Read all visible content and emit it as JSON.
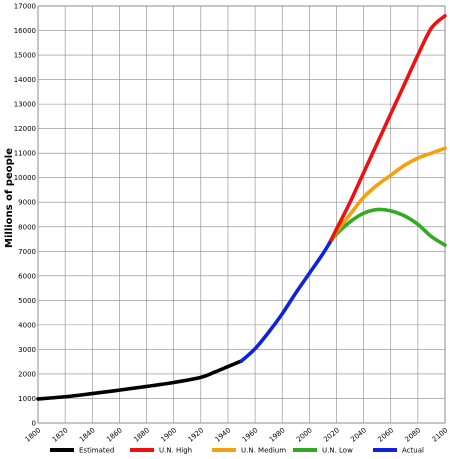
{
  "chart_data": {
    "type": "line",
    "title": "",
    "xlabel": "",
    "ylabel": "Millions of people",
    "xlim": [
      1800,
      2100
    ],
    "ylim": [
      0,
      17000
    ],
    "grid": true,
    "legend_position": "bottom",
    "x_ticks": [
      1800,
      1820,
      1840,
      1860,
      1880,
      1900,
      1920,
      1940,
      1960,
      1980,
      2000,
      2020,
      2040,
      2060,
      2080,
      2100
    ],
    "y_ticks": [
      0,
      1000,
      2000,
      3000,
      4000,
      5000,
      6000,
      7000,
      8000,
      9000,
      10000,
      11000,
      12000,
      13000,
      14000,
      15000,
      16000,
      17000
    ],
    "series": [
      {
        "name": "Estimated",
        "color": "#000000",
        "points": [
          [
            1800,
            980
          ],
          [
            1820,
            1070
          ],
          [
            1840,
            1200
          ],
          [
            1860,
            1340
          ],
          [
            1880,
            1490
          ],
          [
            1900,
            1650
          ],
          [
            1920,
            1860
          ],
          [
            1930,
            2070
          ],
          [
            1940,
            2300
          ],
          [
            1950,
            2530
          ]
        ]
      },
      {
        "name": "U.N. High",
        "color": "#ee1111",
        "points": [
          [
            2015,
            7350
          ],
          [
            2020,
            7900
          ],
          [
            2030,
            9000
          ],
          [
            2040,
            10200
          ],
          [
            2050,
            11400
          ],
          [
            2060,
            12600
          ],
          [
            2070,
            13800
          ],
          [
            2080,
            15000
          ],
          [
            2090,
            16100
          ],
          [
            2100,
            16600
          ]
        ]
      },
      {
        "name": "U.N. Medium",
        "color": "#f5a00f",
        "points": [
          [
            2015,
            7350
          ],
          [
            2020,
            7800
          ],
          [
            2030,
            8500
          ],
          [
            2040,
            9200
          ],
          [
            2050,
            9700
          ],
          [
            2060,
            10100
          ],
          [
            2070,
            10500
          ],
          [
            2080,
            10800
          ],
          [
            2090,
            11000
          ],
          [
            2100,
            11200
          ]
        ]
      },
      {
        "name": "U.N. Low",
        "color": "#33aa22",
        "points": [
          [
            2015,
            7350
          ],
          [
            2020,
            7700
          ],
          [
            2030,
            8200
          ],
          [
            2040,
            8550
          ],
          [
            2050,
            8700
          ],
          [
            2060,
            8650
          ],
          [
            2070,
            8450
          ],
          [
            2080,
            8100
          ],
          [
            2090,
            7600
          ],
          [
            2100,
            7250
          ]
        ]
      },
      {
        "name": "Actual",
        "color": "#1122dd",
        "points": [
          [
            1950,
            2530
          ],
          [
            1960,
            3030
          ],
          [
            1970,
            3700
          ],
          [
            1980,
            4450
          ],
          [
            1990,
            5300
          ],
          [
            2000,
            6100
          ],
          [
            2010,
            6900
          ],
          [
            2015,
            7350
          ]
        ]
      }
    ]
  }
}
